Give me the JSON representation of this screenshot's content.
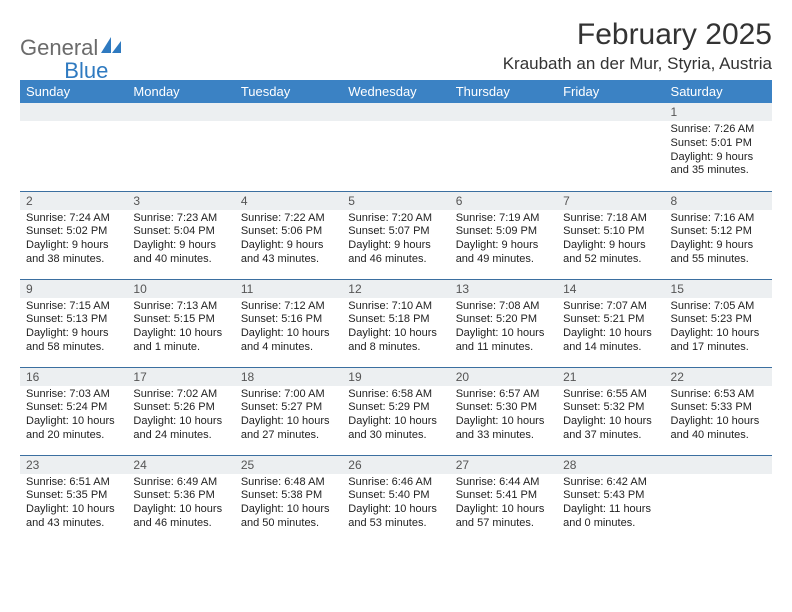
{
  "logo": {
    "part1": "General",
    "part2": "Blue"
  },
  "title": "February 2025",
  "location": "Kraubath an der Mur, Styria, Austria",
  "header_bg": "#3b82c4",
  "header_fg": "#ffffff",
  "daynum_bg": "#eceff1",
  "border_color": "#3b6fa0",
  "text_color": "#222222",
  "font_family": "Arial, Helvetica, sans-serif",
  "daynum_fontsize": 12,
  "body_fontsize": 11,
  "header_fontsize": 13,
  "title_fontsize": 30,
  "location_fontsize": 17,
  "weekdays": [
    "Sunday",
    "Monday",
    "Tuesday",
    "Wednesday",
    "Thursday",
    "Friday",
    "Saturday"
  ],
  "weeks": [
    [
      {
        "n": "",
        "lines": []
      },
      {
        "n": "",
        "lines": []
      },
      {
        "n": "",
        "lines": []
      },
      {
        "n": "",
        "lines": []
      },
      {
        "n": "",
        "lines": []
      },
      {
        "n": "",
        "lines": []
      },
      {
        "n": "1",
        "lines": [
          "Sunrise: 7:26 AM",
          "Sunset: 5:01 PM",
          "Daylight: 9 hours and 35 minutes."
        ]
      }
    ],
    [
      {
        "n": "2",
        "lines": [
          "Sunrise: 7:24 AM",
          "Sunset: 5:02 PM",
          "Daylight: 9 hours and 38 minutes."
        ]
      },
      {
        "n": "3",
        "lines": [
          "Sunrise: 7:23 AM",
          "Sunset: 5:04 PM",
          "Daylight: 9 hours and 40 minutes."
        ]
      },
      {
        "n": "4",
        "lines": [
          "Sunrise: 7:22 AM",
          "Sunset: 5:06 PM",
          "Daylight: 9 hours and 43 minutes."
        ]
      },
      {
        "n": "5",
        "lines": [
          "Sunrise: 7:20 AM",
          "Sunset: 5:07 PM",
          "Daylight: 9 hours and 46 minutes."
        ]
      },
      {
        "n": "6",
        "lines": [
          "Sunrise: 7:19 AM",
          "Sunset: 5:09 PM",
          "Daylight: 9 hours and 49 minutes."
        ]
      },
      {
        "n": "7",
        "lines": [
          "Sunrise: 7:18 AM",
          "Sunset: 5:10 PM",
          "Daylight: 9 hours and 52 minutes."
        ]
      },
      {
        "n": "8",
        "lines": [
          "Sunrise: 7:16 AM",
          "Sunset: 5:12 PM",
          "Daylight: 9 hours and 55 minutes."
        ]
      }
    ],
    [
      {
        "n": "9",
        "lines": [
          "Sunrise: 7:15 AM",
          "Sunset: 5:13 PM",
          "Daylight: 9 hours and 58 minutes."
        ]
      },
      {
        "n": "10",
        "lines": [
          "Sunrise: 7:13 AM",
          "Sunset: 5:15 PM",
          "Daylight: 10 hours and 1 minute."
        ]
      },
      {
        "n": "11",
        "lines": [
          "Sunrise: 7:12 AM",
          "Sunset: 5:16 PM",
          "Daylight: 10 hours and 4 minutes."
        ]
      },
      {
        "n": "12",
        "lines": [
          "Sunrise: 7:10 AM",
          "Sunset: 5:18 PM",
          "Daylight: 10 hours and 8 minutes."
        ]
      },
      {
        "n": "13",
        "lines": [
          "Sunrise: 7:08 AM",
          "Sunset: 5:20 PM",
          "Daylight: 10 hours and 11 minutes."
        ]
      },
      {
        "n": "14",
        "lines": [
          "Sunrise: 7:07 AM",
          "Sunset: 5:21 PM",
          "Daylight: 10 hours and 14 minutes."
        ]
      },
      {
        "n": "15",
        "lines": [
          "Sunrise: 7:05 AM",
          "Sunset: 5:23 PM",
          "Daylight: 10 hours and 17 minutes."
        ]
      }
    ],
    [
      {
        "n": "16",
        "lines": [
          "Sunrise: 7:03 AM",
          "Sunset: 5:24 PM",
          "Daylight: 10 hours and 20 minutes."
        ]
      },
      {
        "n": "17",
        "lines": [
          "Sunrise: 7:02 AM",
          "Sunset: 5:26 PM",
          "Daylight: 10 hours and 24 minutes."
        ]
      },
      {
        "n": "18",
        "lines": [
          "Sunrise: 7:00 AM",
          "Sunset: 5:27 PM",
          "Daylight: 10 hours and 27 minutes."
        ]
      },
      {
        "n": "19",
        "lines": [
          "Sunrise: 6:58 AM",
          "Sunset: 5:29 PM",
          "Daylight: 10 hours and 30 minutes."
        ]
      },
      {
        "n": "20",
        "lines": [
          "Sunrise: 6:57 AM",
          "Sunset: 5:30 PM",
          "Daylight: 10 hours and 33 minutes."
        ]
      },
      {
        "n": "21",
        "lines": [
          "Sunrise: 6:55 AM",
          "Sunset: 5:32 PM",
          "Daylight: 10 hours and 37 minutes."
        ]
      },
      {
        "n": "22",
        "lines": [
          "Sunrise: 6:53 AM",
          "Sunset: 5:33 PM",
          "Daylight: 10 hours and 40 minutes."
        ]
      }
    ],
    [
      {
        "n": "23",
        "lines": [
          "Sunrise: 6:51 AM",
          "Sunset: 5:35 PM",
          "Daylight: 10 hours and 43 minutes."
        ]
      },
      {
        "n": "24",
        "lines": [
          "Sunrise: 6:49 AM",
          "Sunset: 5:36 PM",
          "Daylight: 10 hours and 46 minutes."
        ]
      },
      {
        "n": "25",
        "lines": [
          "Sunrise: 6:48 AM",
          "Sunset: 5:38 PM",
          "Daylight: 10 hours and 50 minutes."
        ]
      },
      {
        "n": "26",
        "lines": [
          "Sunrise: 6:46 AM",
          "Sunset: 5:40 PM",
          "Daylight: 10 hours and 53 minutes."
        ]
      },
      {
        "n": "27",
        "lines": [
          "Sunrise: 6:44 AM",
          "Sunset: 5:41 PM",
          "Daylight: 10 hours and 57 minutes."
        ]
      },
      {
        "n": "28",
        "lines": [
          "Sunrise: 6:42 AM",
          "Sunset: 5:43 PM",
          "Daylight: 11 hours and 0 minutes."
        ]
      },
      {
        "n": "",
        "lines": []
      }
    ]
  ]
}
